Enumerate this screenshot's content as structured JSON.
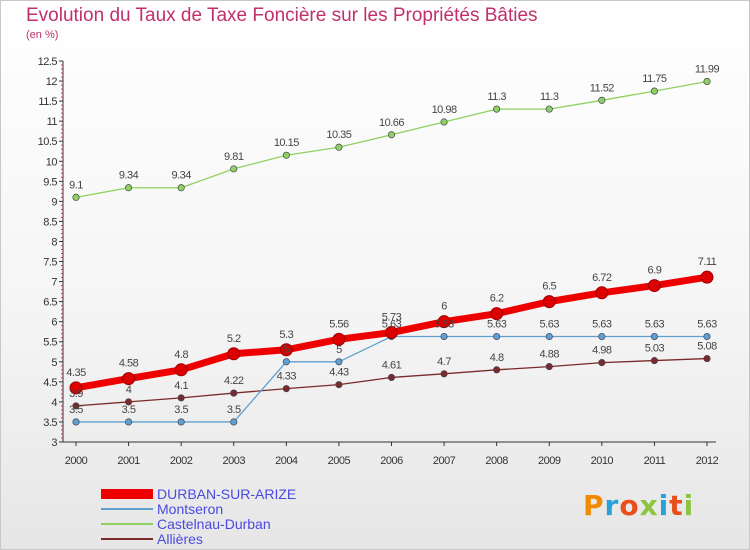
{
  "title": "Evolution du Taux de Taxe Foncière sur les Propriétés Bâties",
  "unit": "(en %)",
  "logo": {
    "text": "Proxiti",
    "letters": [
      "P",
      "r",
      "o",
      "x",
      "i",
      "t",
      "i"
    ],
    "colors": [
      "#f08a00",
      "#2aa0d8",
      "#e94e1b",
      "#8cc63f",
      "#2aa0d8",
      "#e94e1b",
      "#8cc63f"
    ]
  },
  "chart_data": {
    "type": "line",
    "title": "Evolution du Taux de Taxe Foncière sur les Propriétés Bâties",
    "ylabel": "(en %)",
    "x": [
      "2000",
      "2001",
      "2002",
      "2003",
      "2004",
      "2005",
      "2006",
      "2007",
      "2008",
      "2009",
      "2010",
      "2011",
      "2012"
    ],
    "ylim": [
      3,
      12.5
    ],
    "yticks": [
      "3",
      "3.5",
      "4",
      "4.5",
      "5",
      "5.5",
      "6",
      "6.5",
      "7",
      "7.5",
      "8",
      "8.5",
      "9",
      "9.5",
      "10",
      "10.5",
      "11",
      "11.5",
      "12",
      "12.5"
    ],
    "grid": false,
    "legend_position": "bottom-left",
    "series": [
      {
        "name": "DURBAN-SUR-ARIZE",
        "color": "#ee0000",
        "width": 7,
        "values": [
          4.35,
          4.58,
          4.8,
          5.2,
          5.3,
          5.56,
          5.73,
          6,
          6.2,
          6.5,
          6.72,
          6.9,
          7.11
        ],
        "labels": [
          "4.35",
          "4.58",
          "4.8",
          "5.2",
          "5.3",
          "5.56",
          "5.73",
          "6",
          "6.2",
          "6.5",
          "6.72",
          "6.9",
          "7.11"
        ]
      },
      {
        "name": "Montseron",
        "color": "#5fa0d0",
        "width": 1.3,
        "values": [
          3.5,
          3.5,
          3.5,
          3.5,
          5,
          5,
          5.63,
          5.63,
          5.63,
          5.63,
          5.63,
          5.63,
          5.63
        ],
        "labels": [
          "3.5",
          "3.5",
          "3.5",
          "3.5",
          "5",
          "5",
          "5.63",
          "5.63",
          "5.63",
          "5.63",
          "5.63",
          "5.63",
          "5.63"
        ]
      },
      {
        "name": "Castelnau-Durban",
        "color": "#90d060",
        "width": 1.3,
        "values": [
          9.1,
          9.34,
          9.34,
          9.81,
          10.15,
          10.35,
          10.66,
          10.98,
          11.3,
          11.3,
          11.52,
          11.75,
          11.99
        ],
        "labels": [
          "9.1",
          "9.34",
          "9.34",
          "9.81",
          "10.15",
          "10.35",
          "10.66",
          "10.98",
          "11.3",
          "11.3",
          "11.52",
          "11.75",
          "11.99"
        ]
      },
      {
        "name": "Allières",
        "color": "#7a2a2a",
        "width": 1.3,
        "values": [
          3.9,
          4,
          4.1,
          4.22,
          4.33,
          4.43,
          4.61,
          4.7,
          4.8,
          4.88,
          4.98,
          5.03,
          5.08
        ],
        "labels": [
          "3.9",
          "4",
          "4.1",
          "4.22",
          "4.33",
          "4.43",
          "4.61",
          "4.7",
          "4.8",
          "4.88",
          "4.98",
          "5.03",
          "5.08"
        ]
      }
    ]
  }
}
